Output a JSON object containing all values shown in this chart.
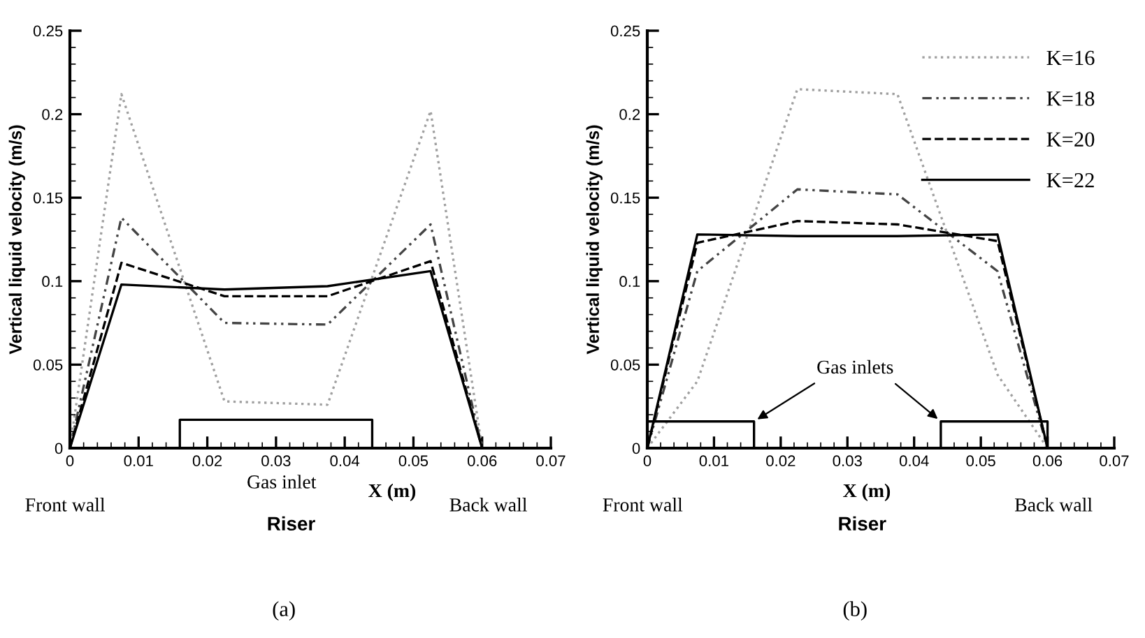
{
  "chart_data": [
    {
      "type": "line",
      "ylabel": "Vertical liquid velocity (m/s)",
      "xlabel": "X (m)",
      "xlim": [
        0,
        0.07
      ],
      "xticks": [
        0,
        0.01,
        0.02,
        0.03,
        0.04,
        0.05,
        0.06,
        0.07
      ],
      "ylim": [
        0,
        0.25
      ],
      "yticks": [
        0,
        0.05,
        0.1,
        0.15,
        0.2,
        0.25
      ],
      "grid": false,
      "legend": false,
      "annotations": [
        "Front wall",
        "Back wall",
        "Riser",
        "(a)",
        "Gas inlet"
      ],
      "series": [
        {
          "color": "#a0a0a0",
          "line_style": "dotted",
          "x": [
            0,
            0.0075,
            0.0225,
            0.0375,
            0.0525,
            0.06
          ],
          "values": [
            0,
            0.212,
            0.028,
            0.026,
            0.202,
            0
          ]
        },
        {
          "color": "#444444",
          "line_style": "dashdot",
          "x": [
            0,
            0.0075,
            0.0225,
            0.0375,
            0.0525,
            0.06
          ],
          "values": [
            0,
            0.138,
            0.075,
            0.074,
            0.134,
            0
          ]
        },
        {
          "color": "#000000",
          "line_style": "dashed",
          "x": [
            0,
            0.0075,
            0.0225,
            0.0375,
            0.0525,
            0.06
          ],
          "values": [
            0,
            0.111,
            0.091,
            0.091,
            0.112,
            0
          ]
        },
        {
          "color": "#000000",
          "line_style": "solid",
          "x": [
            0,
            0.0075,
            0.0225,
            0.0375,
            0.0525,
            0.06
          ],
          "values": [
            0,
            0.098,
            0.095,
            0.097,
            0.106,
            0
          ]
        },
        {
          "color": "#000000",
          "line_style": "solid",
          "x": [
            0.016,
            0.016,
            0.044,
            0.044
          ],
          "values": [
            0,
            0.017,
            0.017,
            0
          ]
        }
      ]
    },
    {
      "type": "line",
      "ylabel": "Vertical liquid velocity (m/s)",
      "xlabel": "X (m)",
      "xlim": [
        0,
        0.07
      ],
      "xticks": [
        0,
        0.01,
        0.02,
        0.03,
        0.04,
        0.05,
        0.06,
        0.07
      ],
      "ylim": [
        0,
        0.25
      ],
      "yticks": [
        0,
        0.05,
        0.1,
        0.15,
        0.2,
        0.25
      ],
      "grid": false,
      "legend": "top right",
      "annotations": [
        "Front wall",
        "Back wall",
        "Riser",
        "(b)",
        {
          "text": "Gas inlets",
          "x": 0.016,
          "y": 0.016
        }
      ],
      "series": [
        {
          "name": "K=16",
          "color": "#a0a0a0",
          "line_style": "dotted",
          "x": [
            0,
            0.0075,
            0.0225,
            0.0375,
            0.0525,
            0.06
          ],
          "values": [
            0,
            0.04,
            0.215,
            0.212,
            0.044,
            0
          ]
        },
        {
          "name": "K=18",
          "color": "#444444",
          "line_style": "dashdot",
          "x": [
            0,
            0.0075,
            0.0225,
            0.0375,
            0.0525,
            0.06
          ],
          "values": [
            0,
            0.106,
            0.155,
            0.152,
            0.106,
            0
          ]
        },
        {
          "name": "K=20",
          "color": "#000000",
          "line_style": "dashed",
          "x": [
            0,
            0.0075,
            0.0225,
            0.0375,
            0.0525,
            0.06
          ],
          "values": [
            0,
            0.123,
            0.136,
            0.134,
            0.124,
            0
          ]
        },
        {
          "name": "K=22",
          "color": "#000000",
          "line_style": "solid",
          "x": [
            0,
            0.0075,
            0.0225,
            0.0375,
            0.0525,
            0.06
          ],
          "values": [
            0,
            0.128,
            0.127,
            0.127,
            0.128,
            0
          ]
        },
        {
          "color": "#000000",
          "line_style": "solid",
          "x": [
            0,
            0.016,
            0.016
          ],
          "values": [
            0.016,
            0.016,
            0
          ]
        },
        {
          "color": "#000000",
          "line_style": "solid",
          "x": [
            0.044,
            0.044,
            0.06,
            0.06
          ],
          "values": [
            0,
            0.016,
            0.016,
            0
          ]
        }
      ]
    }
  ]
}
